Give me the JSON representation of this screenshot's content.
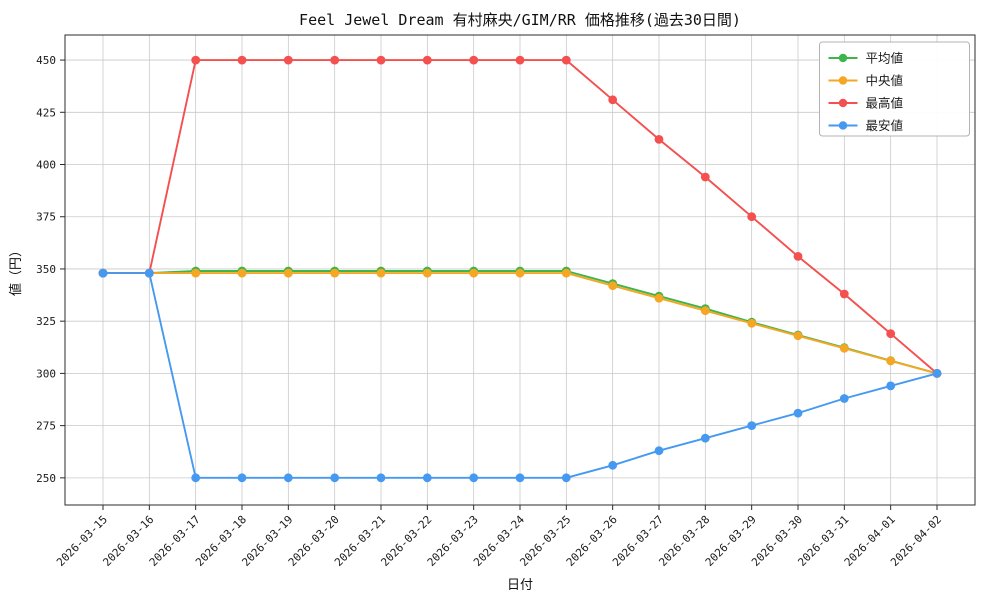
{
  "chart_data": {
    "type": "line",
    "title": "Feel Jewel Dream 有村麻央/GIM/RR 価格推移(過去30日間)",
    "xlabel": "日付",
    "ylabel": "値（円）",
    "x": [
      "2026-03-15",
      "2026-03-16",
      "2026-03-17",
      "2026-03-18",
      "2026-03-19",
      "2026-03-20",
      "2026-03-21",
      "2026-03-22",
      "2026-03-23",
      "2026-03-24",
      "2026-03-25",
      "2026-03-26",
      "2026-03-27",
      "2026-03-28",
      "2026-03-29",
      "2026-03-30",
      "2026-03-31",
      "2026-04-01",
      "2026-04-02"
    ],
    "series": [
      {
        "key": "average",
        "name": "平均値",
        "color": "#3cb54b",
        "values": [
          348,
          348,
          349,
          349,
          349,
          349,
          349,
          349,
          349,
          349,
          349,
          343,
          337,
          331,
          324.5,
          318.4,
          312.3,
          306.1,
          300
        ]
      },
      {
        "key": "median",
        "name": "中央値",
        "color": "#f5a623",
        "values": [
          348,
          348,
          348,
          348,
          348,
          348,
          348,
          348,
          348,
          348,
          348,
          342,
          336,
          330,
          324,
          318,
          312,
          306,
          300
        ]
      },
      {
        "key": "max",
        "name": "最高値",
        "color": "#f3504f",
        "values": [
          348,
          348,
          450,
          450,
          450,
          450,
          450,
          450,
          450,
          450,
          450,
          431,
          412,
          394,
          375,
          356,
          338,
          319,
          300
        ]
      },
      {
        "key": "min",
        "name": "最安値",
        "color": "#4699f0",
        "values": [
          348,
          348,
          250,
          250,
          250,
          250,
          250,
          250,
          250,
          250,
          250,
          256,
          263,
          269,
          275,
          281,
          288,
          294,
          300
        ]
      }
    ],
    "ylim": [
      237,
      462
    ],
    "yticks": [
      250,
      275,
      300,
      325,
      350,
      375,
      400,
      425,
      450
    ],
    "grid": true,
    "legend_position": "upper right"
  }
}
